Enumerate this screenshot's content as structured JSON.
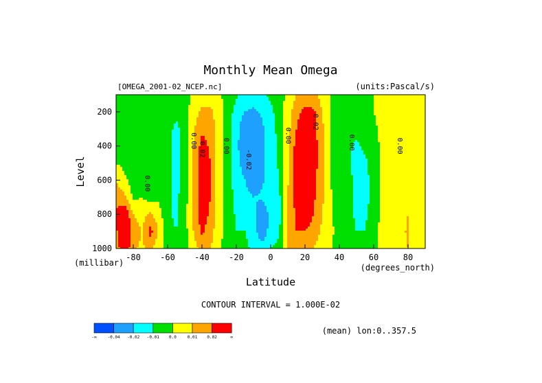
{
  "chart_data": {
    "type": "heatmap",
    "title": "Monthly Mean Omega",
    "file_label": "[OMEGA_2001-02_NCEP.nc]",
    "units_label": "(units:Pascal/s)",
    "xlabel": "Latitude",
    "x_unit_label": "(degrees_north)",
    "ylabel": "Level",
    "y_unit_label": "(millibar)",
    "xlim": [
      -90,
      90
    ],
    "ylim": [
      1000,
      100
    ],
    "x_ticks": [
      -80,
      -60,
      -40,
      -20,
      0,
      20,
      40,
      60,
      80
    ],
    "x_tick_labels": [
      "-80",
      "-60",
      "-40",
      "-20",
      "0",
      "20",
      "40",
      "60",
      "80"
    ],
    "y_ticks": [
      200,
      400,
      600,
      800,
      1000
    ],
    "y_tick_labels": [
      "200",
      "400",
      "600",
      "800",
      "1000"
    ],
    "contour_interval_label": "CONTOUR INTERVAL = 1.000E-02",
    "mean_label": "(mean) lon:0..357.5",
    "contour_labels": [
      {
        "text": "0.00",
        "lat": -73,
        "level": 620
      },
      {
        "text": "0.00",
        "lat": -46,
        "level": 370
      },
      {
        "text": "0.02",
        "lat": -41,
        "level": 420
      },
      {
        "text": "0.00",
        "lat": -27,
        "level": 400
      },
      {
        "text": "-0.02",
        "lat": -14,
        "level": 480
      },
      {
        "text": "0.00",
        "lat": 9,
        "level": 340
      },
      {
        "text": "0.02",
        "lat": 25,
        "level": 260
      },
      {
        "text": "0.00",
        "lat": 46,
        "level": 380
      },
      {
        "text": "0.00",
        "lat": 74,
        "level": 400
      }
    ],
    "colorbar": {
      "colors": [
        "#0050ff",
        "#1ea0ff",
        "#00ffff",
        "#00e000",
        "#ffff00",
        "#ffa500",
        "#ff0000"
      ],
      "labels": [
        "-∞",
        "-0.04",
        "-0.02",
        "-0.01",
        "0.0",
        "0.01",
        "0.02",
        "∞"
      ]
    },
    "field": {
      "lats": [
        -90,
        -85,
        -80,
        -75,
        -70,
        -65,
        -60,
        -55,
        -50,
        -45,
        -40,
        -35,
        -30,
        -25,
        -20,
        -15,
        -10,
        -5,
        0,
        5,
        10,
        15,
        20,
        25,
        30,
        35,
        40,
        45,
        50,
        55,
        60,
        65,
        70,
        75,
        80,
        85,
        90
      ],
      "levels": [
        100,
        200,
        300,
        400,
        500,
        600,
        700,
        800,
        900,
        1000
      ],
      "values": [
        [
          0.0,
          0.0,
          -0.003,
          -0.003,
          -0.002,
          0.0,
          0.0,
          -0.002,
          -0.004,
          0.002,
          0.006,
          0.006,
          0.002,
          -0.004,
          -0.009,
          -0.012,
          -0.014,
          -0.012,
          -0.008,
          -0.004,
          0.003,
          0.01,
          0.012,
          0.012,
          0.006,
          0.0,
          -0.004,
          -0.004,
          -0.002,
          0.0,
          0.0,
          0.001,
          0.001,
          0.001,
          0.001,
          0.0,
          0.0
        ],
        [
          0.0,
          -0.003,
          -0.005,
          -0.006,
          -0.004,
          -0.002,
          -0.004,
          -0.008,
          -0.005,
          0.006,
          0.012,
          0.012,
          0.004,
          -0.006,
          -0.013,
          -0.02,
          -0.022,
          -0.018,
          -0.012,
          -0.006,
          0.005,
          0.016,
          0.024,
          0.022,
          0.01,
          0.0,
          -0.006,
          -0.005,
          -0.004,
          -0.002,
          0.0,
          0.003,
          0.004,
          0.003,
          0.002,
          0.001,
          0.0
        ],
        [
          0.0,
          -0.004,
          -0.006,
          -0.007,
          -0.006,
          -0.004,
          -0.007,
          -0.012,
          -0.006,
          0.008,
          0.018,
          0.016,
          0.005,
          -0.007,
          -0.015,
          -0.03,
          -0.032,
          -0.022,
          -0.014,
          -0.007,
          0.006,
          0.02,
          0.03,
          0.024,
          0.012,
          0.0,
          -0.008,
          -0.006,
          -0.006,
          -0.004,
          -0.002,
          0.003,
          0.005,
          0.004,
          0.003,
          0.001,
          0.0
        ],
        [
          0.0,
          -0.004,
          -0.006,
          -0.007,
          -0.006,
          -0.005,
          -0.008,
          -0.013,
          -0.006,
          0.01,
          0.024,
          0.018,
          0.005,
          -0.007,
          -0.016,
          -0.032,
          -0.034,
          -0.024,
          -0.014,
          -0.008,
          0.007,
          0.024,
          0.034,
          0.026,
          0.012,
          0.0,
          -0.008,
          -0.008,
          -0.012,
          -0.008,
          -0.004,
          0.002,
          0.006,
          0.005,
          0.004,
          0.002,
          0.0
        ],
        [
          0.0,
          -0.003,
          -0.006,
          -0.006,
          -0.006,
          -0.004,
          -0.008,
          -0.013,
          -0.006,
          0.012,
          0.028,
          0.02,
          0.004,
          -0.007,
          -0.015,
          -0.026,
          -0.03,
          -0.024,
          -0.014,
          -0.009,
          0.008,
          0.026,
          0.036,
          0.026,
          0.012,
          0.0,
          -0.008,
          -0.007,
          -0.014,
          -0.012,
          -0.006,
          0.002,
          0.005,
          0.005,
          0.004,
          0.002,
          0.0
        ],
        [
          0.01,
          0.002,
          -0.004,
          -0.004,
          -0.006,
          -0.004,
          -0.008,
          -0.013,
          -0.006,
          0.012,
          0.028,
          0.02,
          0.004,
          -0.007,
          -0.014,
          -0.02,
          -0.028,
          -0.022,
          -0.013,
          -0.01,
          0.009,
          0.026,
          0.034,
          0.024,
          0.012,
          0.0,
          -0.008,
          -0.006,
          -0.014,
          -0.013,
          -0.006,
          0.002,
          0.004,
          0.004,
          0.003,
          0.001,
          0.0
        ],
        [
          0.016,
          0.012,
          -0.002,
          0.0,
          -0.004,
          -0.002,
          -0.008,
          -0.012,
          -0.005,
          0.012,
          0.028,
          0.02,
          0.004,
          -0.006,
          -0.012,
          -0.016,
          -0.02,
          -0.018,
          -0.012,
          -0.012,
          0.01,
          0.024,
          0.03,
          0.022,
          0.012,
          0.001,
          -0.006,
          -0.006,
          -0.014,
          -0.014,
          -0.006,
          0.002,
          0.004,
          0.004,
          0.002,
          0.001,
          0.0
        ],
        [
          0.022,
          0.03,
          0.01,
          0.006,
          0.012,
          0.004,
          -0.008,
          -0.012,
          -0.004,
          0.012,
          0.026,
          0.018,
          0.004,
          -0.006,
          -0.011,
          -0.012,
          -0.016,
          -0.03,
          -0.016,
          -0.013,
          0.012,
          0.022,
          0.026,
          0.02,
          0.01,
          0.002,
          -0.005,
          -0.006,
          -0.012,
          -0.012,
          -0.004,
          0.002,
          0.004,
          0.004,
          0.01,
          0.002,
          0.0
        ],
        [
          0.018,
          0.032,
          0.016,
          0.01,
          0.024,
          0.008,
          -0.006,
          -0.01,
          -0.004,
          0.01,
          0.022,
          0.014,
          0.003,
          -0.005,
          -0.01,
          -0.01,
          -0.014,
          -0.03,
          -0.014,
          -0.011,
          0.012,
          0.02,
          0.02,
          0.016,
          0.008,
          0.002,
          -0.004,
          -0.005,
          -0.01,
          -0.01,
          -0.002,
          0.002,
          0.004,
          0.005,
          0.012,
          0.002,
          0.0
        ],
        [
          0.014,
          0.03,
          0.012,
          0.008,
          0.012,
          0.004,
          -0.004,
          -0.008,
          -0.003,
          0.006,
          0.014,
          0.01,
          0.002,
          -0.004,
          -0.008,
          -0.008,
          -0.012,
          -0.014,
          -0.01,
          -0.008,
          0.01,
          0.014,
          0.012,
          0.01,
          0.004,
          0.001,
          -0.003,
          -0.004,
          -0.006,
          -0.006,
          -0.001,
          0.001,
          0.003,
          0.004,
          0.01,
          0.002,
          0.0
        ]
      ]
    }
  }
}
